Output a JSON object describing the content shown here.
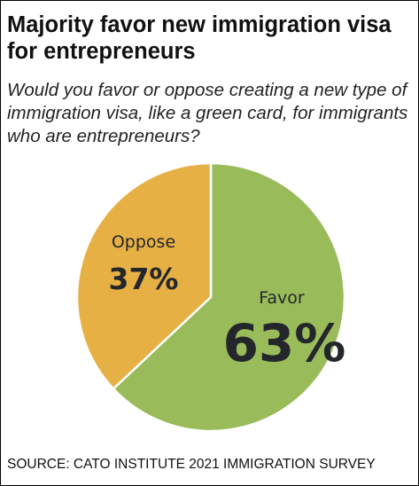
{
  "title": "Majority favor new immigration visa for entrepreneurs",
  "subtitle": "Would you favor or oppose creating a new type of immigration visa, like a green card, for immigrants who are entrepreneurs?",
  "source": "SOURCE: CATO INSTITUTE 2021 IMMIGRATION SURVEY",
  "colors": {
    "favor": "#99bb5a",
    "oppose": "#e7b045",
    "divider": "#ffffff",
    "label": "#23272b"
  },
  "chart_data": {
    "type": "pie",
    "title": "Majority favor new immigration visa for entrepreneurs",
    "start": "12 o'clock, clockwise",
    "slices": [
      {
        "label": "Favor",
        "value": 63,
        "value_label": "63%",
        "color": "#99bb5a"
      },
      {
        "label": "Oppose",
        "value": 37,
        "value_label": "37%",
        "color": "#e7b045"
      }
    ]
  }
}
